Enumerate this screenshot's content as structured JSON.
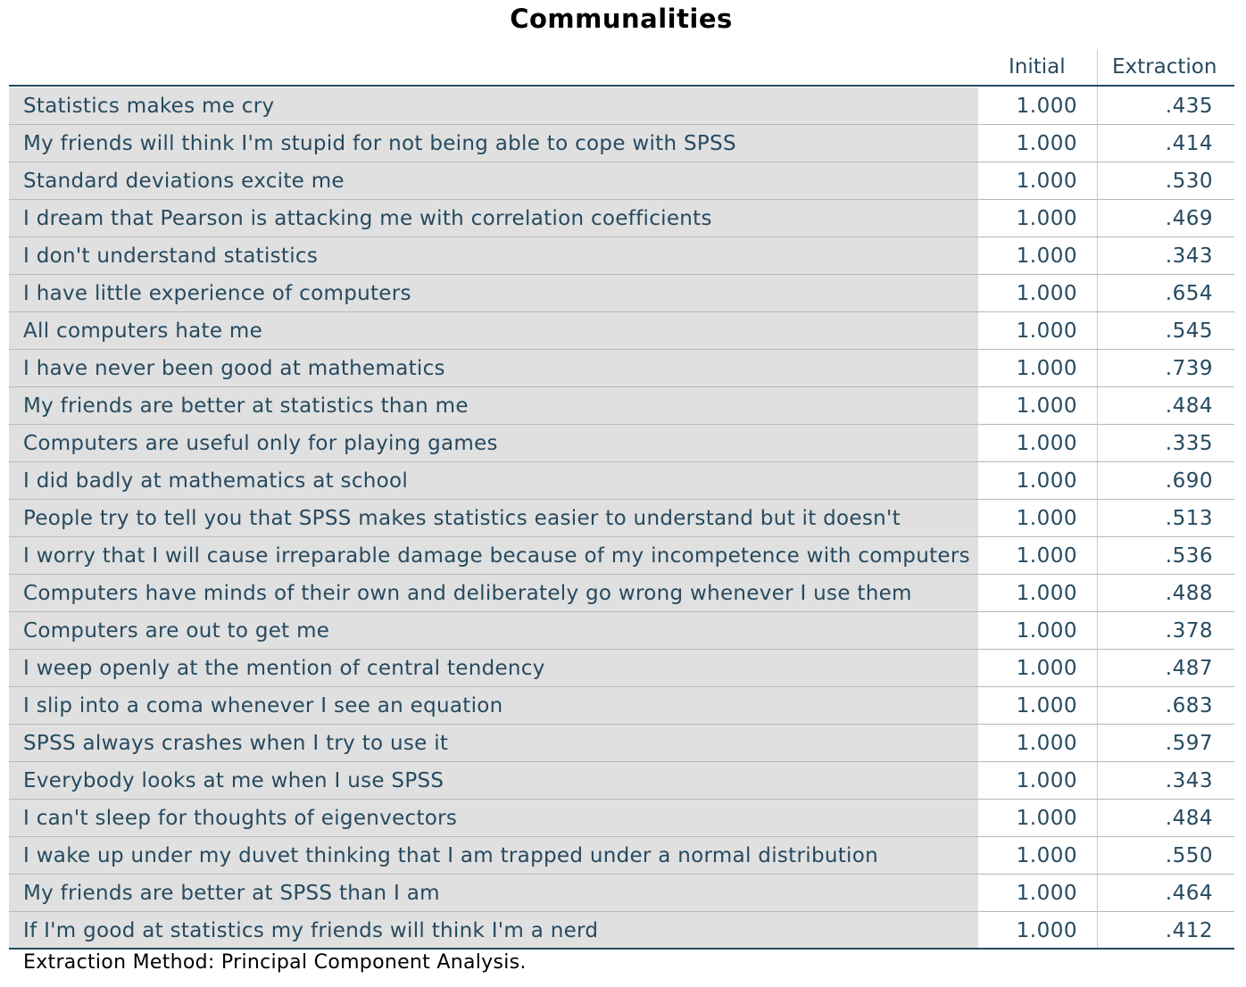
{
  "title": "Communalities",
  "table": {
    "columns": [
      "Initial",
      "Extraction"
    ],
    "rows": [
      [
        "Statistics makes me cry",
        "1.000",
        ".435"
      ],
      [
        "My friends will think I'm stupid for not being able to cope with SPSS",
        "1.000",
        ".414"
      ],
      [
        "Standard deviations excite me",
        "1.000",
        ".530"
      ],
      [
        "I dream that Pearson is attacking me with correlation coefficients",
        "1.000",
        ".469"
      ],
      [
        "I don't understand statistics",
        "1.000",
        ".343"
      ],
      [
        "I have little experience of computers",
        "1.000",
        ".654"
      ],
      [
        "All computers hate me",
        "1.000",
        ".545"
      ],
      [
        "I have never been good at mathematics",
        "1.000",
        ".739"
      ],
      [
        "My friends are better at statistics than me",
        "1.000",
        ".484"
      ],
      [
        "Computers are useful only for playing games",
        "1.000",
        ".335"
      ],
      [
        "I did badly at mathematics at school",
        "1.000",
        ".690"
      ],
      [
        "People try to tell you that SPSS makes statistics easier to understand but it doesn't",
        "1.000",
        ".513"
      ],
      [
        "I worry that I will cause irreparable damage because of my incompetence with computers",
        "1.000",
        ".536"
      ],
      [
        "Computers have minds of their own and deliberately go wrong whenever I use them",
        "1.000",
        ".488"
      ],
      [
        "Computers are out to get me",
        "1.000",
        ".378"
      ],
      [
        "I weep openly at the mention of central tendency",
        "1.000",
        ".487"
      ],
      [
        "I slip into a coma whenever I see an equation",
        "1.000",
        ".683"
      ],
      [
        "SPSS always crashes when I try to use it",
        "1.000",
        ".597"
      ],
      [
        "Everybody looks at me when I use SPSS",
        "1.000",
        ".343"
      ],
      [
        "I can't sleep for thoughts of eigenvectors",
        "1.000",
        ".484"
      ],
      [
        "I wake up under my duvet thinking that I am trapped under a normal distribution",
        "1.000",
        ".550"
      ],
      [
        "My friends are better at SPSS than I am",
        "1.000",
        ".464"
      ],
      [
        "If I'm good at statistics my friends will think I'm a nerd",
        "1.000",
        ".412"
      ]
    ]
  },
  "footnote": "Extraction Method: Principal Component Analysis."
}
